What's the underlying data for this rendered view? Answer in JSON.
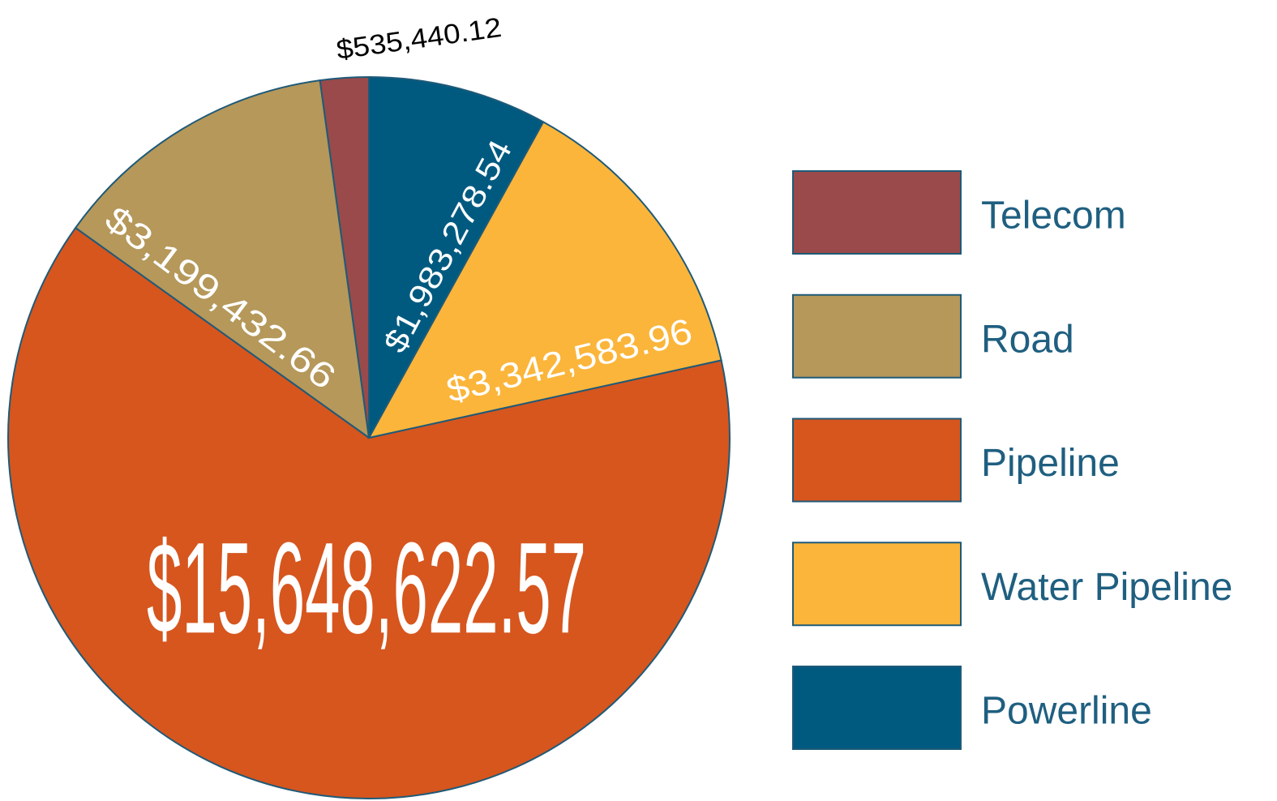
{
  "chart_data": {
    "type": "pie",
    "categories": [
      "Telecom",
      "Road",
      "Pipeline",
      "Water Pipeline",
      "Powerline"
    ],
    "values": [
      535440.12,
      3199432.66,
      15648622.57,
      3342583.96,
      1983278.54
    ],
    "value_labels": [
      "$535,440.12",
      "$3,199,432.66",
      "$15,648,622.57",
      "$3,342,583.96",
      "$1,983,278.54"
    ],
    "colors": [
      "#9a4a4a",
      "#b5985a",
      "#d6561e",
      "#fbb53a",
      "#005a80"
    ],
    "legend": "right"
  }
}
